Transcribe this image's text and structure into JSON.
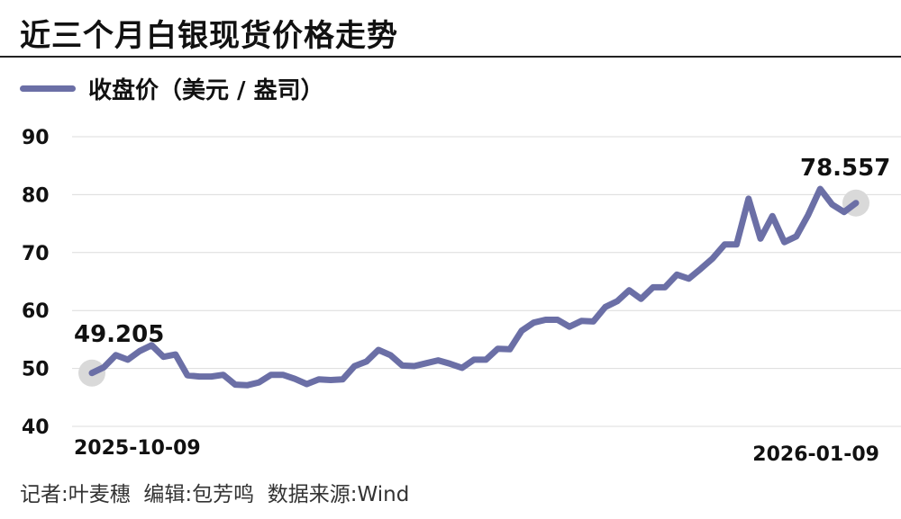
{
  "header": {
    "title": "近三个月白银现货价格走势"
  },
  "footer": {
    "credits": "记者:叶麦穗  编辑:包芳鸣  数据来源:Wind"
  },
  "chart_data": {
    "type": "line",
    "title": "近三个月白银现货价格走势",
    "xlabel": "",
    "ylabel": "",
    "ylim": [
      40,
      90
    ],
    "yticks": [
      40,
      50,
      60,
      70,
      80,
      90
    ],
    "grid": true,
    "legend_placement": "top-left",
    "x_start_label": "2025-10-09",
    "x_end_label": "2026-01-09",
    "start_value_label": "49.205",
    "end_value_label": "78.557",
    "series": [
      {
        "name": "收盘价（美元 / 盎司）",
        "color": "#6b6fa6",
        "values": [
          49.205,
          50.2,
          52.3,
          51.5,
          53.0,
          54.0,
          52.0,
          52.4,
          48.8,
          48.6,
          48.6,
          48.9,
          47.2,
          47.1,
          47.6,
          48.9,
          48.9,
          48.2,
          47.3,
          48.1,
          48.0,
          48.1,
          50.4,
          51.2,
          53.2,
          52.3,
          50.5,
          50.4,
          50.9,
          51.4,
          50.8,
          50.1,
          51.5,
          51.5,
          53.4,
          53.3,
          56.5,
          57.9,
          58.4,
          58.4,
          57.2,
          58.2,
          58.1,
          60.6,
          61.6,
          63.5,
          62.0,
          64.0,
          64.0,
          66.2,
          65.5,
          67.2,
          69.0,
          71.4,
          71.4,
          79.3,
          72.4,
          76.3,
          71.8,
          72.8,
          76.5,
          81.0,
          78.3,
          77.0,
          78.557
        ]
      }
    ]
  }
}
